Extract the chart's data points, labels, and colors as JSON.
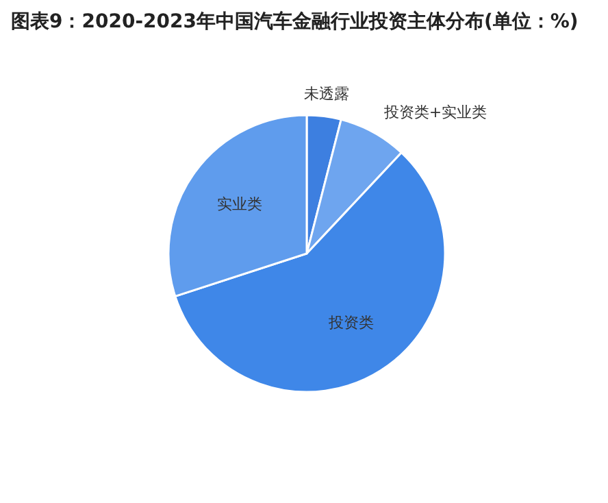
{
  "chart_data": {
    "type": "pie",
    "title": "图表9：2020-2023年中国汽车金融行业投资主体分布(单位：%)",
    "categories": [
      "未透露",
      "投资类+实业类",
      "投资类",
      "实业类"
    ],
    "values": [
      4,
      8,
      58,
      30
    ],
    "colors": [
      "#3d7fe0",
      "#6ea5ef",
      "#3f87e8",
      "#5f9ced"
    ]
  }
}
